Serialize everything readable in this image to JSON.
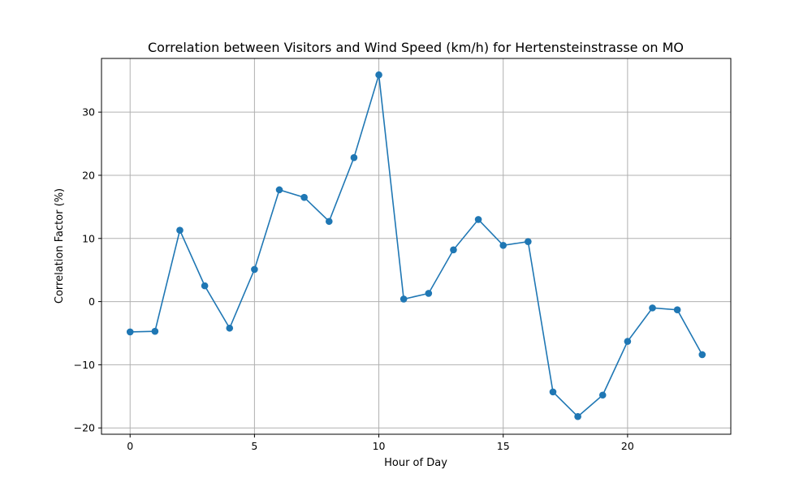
{
  "chart_data": {
    "type": "line",
    "title": "Correlation between Visitors and Wind Speed (km/h) for Hertensteinstrasse on MO",
    "xlabel": "Hour of Day",
    "ylabel": "Correlation Factor (%)",
    "xlim": [
      -1.15,
      24.15
    ],
    "ylim": [
      -21,
      38.5
    ],
    "x_ticks": [
      0,
      5,
      10,
      15,
      20
    ],
    "y_ticks": [
      -20,
      -10,
      0,
      10,
      20,
      30
    ],
    "x_tick_labels": [
      "0",
      "5",
      "10",
      "15",
      "20"
    ],
    "y_tick_labels": [
      "−20",
      "−10",
      "0",
      "10",
      "20",
      "30"
    ],
    "grid": true,
    "series": [
      {
        "color": "#1f77b4",
        "marker": "circle",
        "x": [
          0,
          1,
          2,
          3,
          4,
          5,
          6,
          7,
          8,
          9,
          10,
          11,
          12,
          13,
          14,
          15,
          16,
          17,
          18,
          19,
          20,
          21,
          22,
          23
        ],
        "y": [
          -4.8,
          -4.7,
          11.3,
          2.5,
          -4.2,
          5.1,
          17.7,
          16.5,
          12.7,
          22.8,
          35.9,
          0.4,
          1.3,
          8.2,
          13.0,
          8.9,
          9.5,
          -14.3,
          -18.2,
          -14.8,
          -6.3,
          -1.0,
          -1.3,
          -8.4
        ]
      }
    ]
  }
}
